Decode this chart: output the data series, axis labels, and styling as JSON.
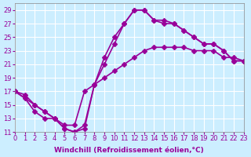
{
  "xlabel": "Windchill (Refroidissement éolien,°C)",
  "background_color": "#cceeff",
  "grid_color": "#ffffff",
  "line_color": "#990099",
  "marker": "D",
  "marker_size": 3,
  "line_width": 1.2,
  "xlim": [
    0,
    23
  ],
  "ylim": [
    11,
    30
  ],
  "xticks": [
    0,
    1,
    2,
    3,
    4,
    5,
    6,
    7,
    8,
    9,
    10,
    11,
    12,
    13,
    14,
    15,
    16,
    17,
    18,
    19,
    20,
    21,
    22,
    23
  ],
  "yticks": [
    11,
    13,
    15,
    17,
    19,
    21,
    23,
    25,
    27,
    29
  ],
  "tick_fontsize": 6,
  "xlabel_fontsize": 6.5,
  "series": [
    {
      "x": [
        0,
        1,
        2,
        3,
        4,
        5,
        6,
        7,
        8,
        9,
        10,
        11,
        12,
        13,
        14,
        15,
        16,
        17,
        18,
        19,
        20,
        21,
        22,
        23
      ],
      "y": [
        17,
        16,
        14,
        13,
        13,
        11.5,
        11,
        11.5,
        18,
        22,
        25,
        27,
        29,
        29,
        27.5,
        27.5,
        27,
        26,
        25,
        24,
        24,
        23,
        21.5,
        21.5
      ]
    },
    {
      "x": [
        0,
        1,
        2,
        3,
        4,
        5,
        6,
        7,
        8,
        9,
        10,
        11,
        12,
        13,
        14,
        15,
        16,
        17,
        18,
        19,
        20,
        21,
        22,
        23
      ],
      "y": [
        17,
        16.5,
        15,
        14,
        13,
        12,
        12,
        17,
        18,
        19,
        20,
        21,
        22,
        23,
        23.5,
        23.5,
        23.5,
        23.5,
        23,
        23,
        23,
        22,
        22,
        21.5
      ]
    },
    {
      "x": [
        0,
        2,
        3,
        4,
        5,
        6,
        7,
        8,
        9,
        10,
        11,
        12,
        13,
        14,
        15,
        16,
        17,
        18,
        19,
        20,
        21,
        22,
        23
      ],
      "y": [
        17,
        15,
        14,
        13,
        11.5,
        11,
        12,
        18,
        21,
        24,
        27,
        29,
        29,
        27.5,
        27,
        27,
        26,
        25,
        24,
        24,
        23,
        21.5,
        21.5
      ]
    }
  ]
}
